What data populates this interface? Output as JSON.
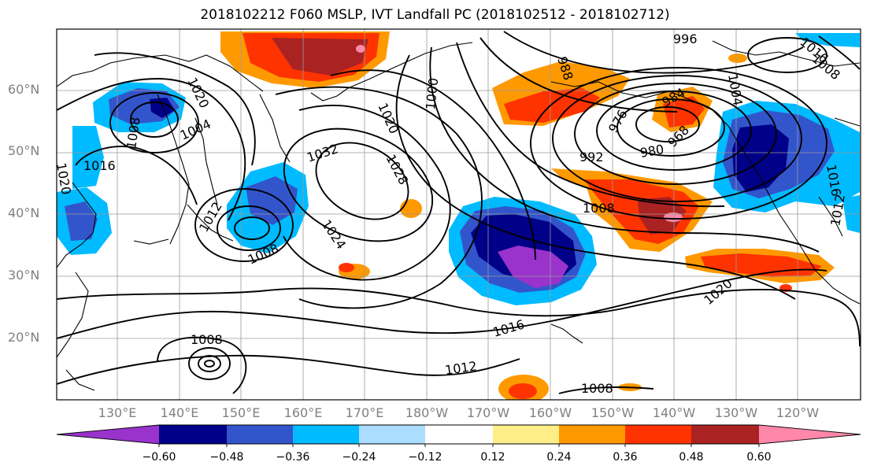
{
  "title": "2018102212 F060 MSLP, IVT Landfall PC (2018102512 - 2018102712)",
  "lat_labels": [
    "60°N",
    "50°N",
    "40°N",
    "30°N",
    "20°N"
  ],
  "lon_labels": [
    "130°E",
    "140°E",
    "150°E",
    "160°E",
    "170°E",
    "180°W",
    "170°W",
    "160°W",
    "150°W",
    "140°W",
    "130°W",
    "120°W"
  ],
  "contour_labels": [
    "996",
    "988",
    "1016",
    "1008",
    "1012",
    "1004",
    "1000",
    "1020",
    "984",
    "976",
    "968",
    "980",
    "992",
    "1004",
    "1008",
    "1032",
    "1028",
    "1020",
    "1016",
    "1020",
    "1012",
    "1008",
    "1024",
    "1016",
    "1012",
    "1008",
    "1008",
    "1020",
    "1016"
  ],
  "colorbar": {
    "tick_labels": [
      "−0.60",
      "−0.48",
      "−0.36",
      "−0.24",
      "−0.12",
      "0.12",
      "0.24",
      "0.36",
      "0.48",
      "0.60"
    ],
    "colors": [
      "#9933cc",
      "#000088",
      "#3355cc",
      "#00bbff",
      "#aaddff",
      "#ffffff",
      "#ffee88",
      "#ff9900",
      "#ff3300",
      "#aa2222",
      "#ff88aa"
    ]
  }
}
